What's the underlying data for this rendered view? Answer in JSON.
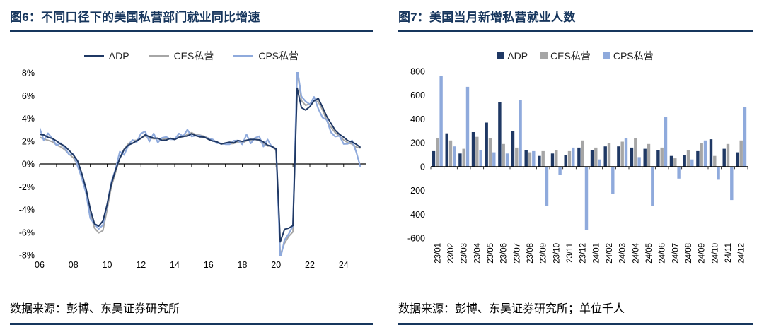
{
  "page": {
    "background": "#FFFFFF",
    "accent_color": "#17365D"
  },
  "fig6": {
    "title": "图6：不同口径下的美国私营部门就业同比增速",
    "source": "数据来源：彭博、东吴证券研究所"
  },
  "fig7": {
    "title": "图7：美国当月新增私营就业人数",
    "source": "数据来源：彭博、东吴证券研究所；单位千人"
  },
  "chart_data": [
    {
      "id": "chart6",
      "type": "line",
      "title": "不同口径下的美国私营部门就业同比增速",
      "x_start": 2006,
      "x_step": 0.25,
      "x_unit": "year",
      "ylim": [
        -8,
        8
      ],
      "ytick_step": 2,
      "ytick_suffix": "%",
      "xticks": [
        2006,
        2008,
        2010,
        2012,
        2014,
        2016,
        2018,
        2020,
        2022,
        2024
      ],
      "xtick_labels": [
        "06",
        "08",
        "10",
        "12",
        "14",
        "16",
        "18",
        "20",
        "22",
        "24"
      ],
      "grid": false,
      "legend_position": "top",
      "series": [
        {
          "name": "ADP",
          "color": "#1F3864",
          "jitter": 0.06,
          "values": [
            2.6,
            2.5,
            2.4,
            2.2,
            2.0,
            1.8,
            1.5,
            1.2,
            0.8,
            0.2,
            -0.8,
            -2.2,
            -4.0,
            -5.2,
            -5.5,
            -5.0,
            -3.5,
            -1.8,
            -0.5,
            0.5,
            1.2,
            1.7,
            1.8,
            2.0,
            2.3,
            2.5,
            2.4,
            2.3,
            2.2,
            2.1,
            2.1,
            2.2,
            2.2,
            2.3,
            2.4,
            2.5,
            2.6,
            2.5,
            2.4,
            2.3,
            2.2,
            2.0,
            1.9,
            1.8,
            1.8,
            1.9,
            1.9,
            2.0,
            2.0,
            2.1,
            2.1,
            2.2,
            2.1,
            1.9,
            1.7,
            1.5,
            1.3,
            -6.8,
            -5.8,
            -5.6,
            -5.4,
            6.6,
            5.0,
            4.7,
            5.0,
            5.6,
            5.7,
            5.0,
            4.2,
            3.5,
            3.0,
            2.6,
            2.3,
            2.1,
            1.9,
            1.7,
            1.5
          ]
        },
        {
          "name": "CES私营",
          "color": "#A6A6A6",
          "jitter": 0.05,
          "values": [
            2.3,
            2.2,
            2.1,
            1.9,
            1.7,
            1.5,
            1.2,
            0.9,
            0.5,
            -0.1,
            -1.0,
            -2.5,
            -4.3,
            -5.6,
            -6.1,
            -5.8,
            -4.0,
            -2.0,
            -0.7,
            0.5,
            1.3,
            1.8,
            2.0,
            2.1,
            2.3,
            2.4,
            2.3,
            2.2,
            2.2,
            2.2,
            2.2,
            2.2,
            2.2,
            2.3,
            2.4,
            2.6,
            2.7,
            2.6,
            2.5,
            2.4,
            2.3,
            2.1,
            1.9,
            1.8,
            1.7,
            1.8,
            1.8,
            1.9,
            1.9,
            2.0,
            2.1,
            2.2,
            2.0,
            1.8,
            1.6,
            1.5,
            1.2,
            -8.0,
            -7.0,
            -6.3,
            -6.0,
            8.2,
            5.6,
            5.1,
            5.3,
            5.6,
            5.4,
            4.8,
            3.8,
            3.2,
            2.8,
            2.4,
            2.1,
            1.9,
            1.7,
            1.5,
            1.4
          ]
        },
        {
          "name": "CPS私营",
          "color": "#8FAADC",
          "jitter": 0.28,
          "values": [
            2.9,
            2.3,
            2.6,
            2.1,
            1.9,
            1.6,
            1.4,
            1.0,
            0.6,
            0.0,
            -1.2,
            -2.8,
            -4.5,
            -5.4,
            -5.8,
            -5.1,
            -3.8,
            -1.5,
            -0.3,
            0.8,
            1.0,
            1.6,
            1.9,
            2.2,
            2.5,
            2.8,
            2.2,
            2.4,
            2.0,
            2.4,
            2.1,
            2.4,
            2.1,
            2.5,
            2.7,
            2.8,
            2.4,
            2.7,
            2.2,
            2.5,
            2.3,
            1.9,
            2.1,
            1.7,
            1.6,
            2.0,
            1.8,
            2.1,
            1.9,
            2.3,
            2.0,
            2.3,
            2.2,
            1.8,
            2.0,
            1.4,
            1.6,
            -8.6,
            -6.6,
            -6.0,
            -5.7,
            8.6,
            5.9,
            5.3,
            5.5,
            5.7,
            4.8,
            4.3,
            3.6,
            2.9,
            2.5,
            2.2,
            2.0,
            1.7,
            1.9,
            1.3,
            -0.5
          ]
        }
      ]
    },
    {
      "id": "chart7",
      "type": "bar",
      "title": "美国当月新增私营就业人数",
      "unit": "千人",
      "ylim": [
        -600,
        800
      ],
      "ytick_step": 200,
      "grid": false,
      "legend_position": "top",
      "categories": [
        "23/01",
        "23/02",
        "23/03",
        "23/04",
        "23/05",
        "23/06",
        "23/07",
        "23/08",
        "23/09",
        "23/10",
        "23/11",
        "23/12",
        "24/01",
        "24/02",
        "24/03",
        "24/04",
        "24/05",
        "24/06",
        "24/07",
        "24/08",
        "24/09",
        "24/10",
        "24/11",
        "24/12"
      ],
      "series": [
        {
          "name": "ADP",
          "color": "#1F3864",
          "values": [
            130,
            280,
            110,
            290,
            370,
            540,
            300,
            140,
            90,
            110,
            100,
            160,
            140,
            170,
            170,
            160,
            150,
            140,
            90,
            100,
            130,
            230,
            150,
            120
          ]
        },
        {
          "name": "CES私营",
          "color": "#A6A6A6",
          "values": [
            240,
            220,
            150,
            250,
            240,
            190,
            160,
            120,
            130,
            140,
            130,
            220,
            160,
            200,
            210,
            240,
            190,
            160,
            70,
            140,
            200,
            90,
            190,
            220
          ]
        },
        {
          "name": "CPS私营",
          "color": "#8FAADC",
          "values": [
            760,
            170,
            670,
            140,
            120,
            110,
            560,
            130,
            -330,
            -70,
            160,
            -530,
            60,
            -230,
            240,
            80,
            -330,
            420,
            -100,
            60,
            220,
            -110,
            -280,
            500
          ]
        }
      ]
    }
  ]
}
